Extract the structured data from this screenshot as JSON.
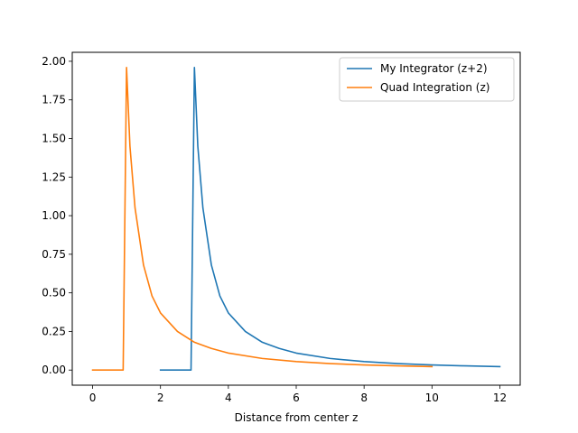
{
  "chart_data": {
    "type": "line",
    "title": "",
    "xlabel": "Distance from center z",
    "ylabel": "",
    "xlim": [
      -0.6,
      12.6
    ],
    "ylim": [
      -0.098,
      2.058
    ],
    "x_ticks": [
      0,
      2,
      4,
      6,
      8,
      10,
      12
    ],
    "x_tick_labels": [
      "0",
      "2",
      "4",
      "6",
      "8",
      "10",
      "12"
    ],
    "y_ticks": [
      0.0,
      0.25,
      0.5,
      0.75,
      1.0,
      1.25,
      1.5,
      1.75,
      2.0
    ],
    "y_tick_labels": [
      "0.00",
      "0.25",
      "0.50",
      "0.75",
      "1.00",
      "1.25",
      "1.50",
      "1.75",
      "2.00"
    ],
    "grid": false,
    "legend_position": "top-right",
    "series": [
      {
        "name": "My Integrator (z+2)",
        "color": "#1f77b4",
        "x": [
          2.0,
          2.9,
          3.0,
          3.1,
          3.25,
          3.5,
          3.75,
          4.0,
          4.5,
          5.0,
          5.5,
          6.0,
          7.0,
          8.0,
          9.0,
          10.0,
          11.0,
          12.0
        ],
        "y": [
          0.0,
          0.0,
          1.96,
          1.45,
          1.05,
          0.68,
          0.48,
          0.37,
          0.25,
          0.18,
          0.14,
          0.11,
          0.075,
          0.055,
          0.042,
          0.033,
          0.027,
          0.022
        ]
      },
      {
        "name": "Quad Integration (z)",
        "color": "#ff7f0e",
        "x": [
          0.0,
          0.9,
          1.0,
          1.1,
          1.25,
          1.5,
          1.75,
          2.0,
          2.5,
          3.0,
          3.5,
          4.0,
          5.0,
          6.0,
          7.0,
          8.0,
          9.0,
          10.0
        ],
        "y": [
          0.0,
          0.0,
          1.96,
          1.45,
          1.05,
          0.68,
          0.48,
          0.37,
          0.25,
          0.18,
          0.14,
          0.11,
          0.075,
          0.055,
          0.042,
          0.033,
          0.027,
          0.022
        ]
      }
    ]
  }
}
